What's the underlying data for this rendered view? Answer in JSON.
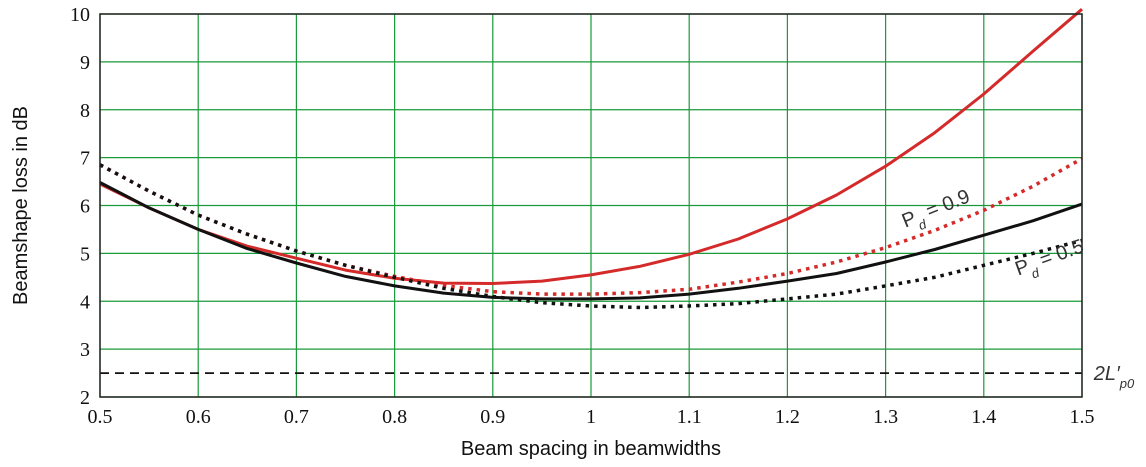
{
  "chart_data": {
    "type": "line",
    "xlabel": "Beam spacing in beamwidths",
    "ylabel": "Beamshape loss in dB",
    "xlim": [
      0.5,
      1.5
    ],
    "ylim": [
      2,
      10
    ],
    "x_ticks": [
      "0.5",
      "0.6",
      "0.7",
      "0.8",
      "0.9",
      "1",
      "1.1",
      "1.2",
      "1.3",
      "1.4",
      "1.5"
    ],
    "y_ticks": [
      "2",
      "3",
      "4",
      "5",
      "6",
      "7",
      "8",
      "9",
      "10"
    ],
    "grid": true,
    "grid_color": "#1a9a3a",
    "x": [
      0.5,
      0.55,
      0.6,
      0.65,
      0.7,
      0.75,
      0.8,
      0.85,
      0.9,
      0.95,
      1.0,
      1.05,
      1.1,
      1.15,
      1.2,
      1.25,
      1.3,
      1.35,
      1.4,
      1.45,
      1.5
    ],
    "series": [
      {
        "style": "solid",
        "color": "#d42a2a",
        "values": [
          6.45,
          5.95,
          5.5,
          5.15,
          4.9,
          4.65,
          4.48,
          4.38,
          4.37,
          4.42,
          4.55,
          4.73,
          4.98,
          5.3,
          5.72,
          6.22,
          6.82,
          7.52,
          8.33,
          9.22,
          10.1
        ]
      },
      {
        "style": "dotted",
        "color": "#d42a2a",
        "values": [
          6.85,
          6.3,
          5.8,
          5.4,
          5.05,
          4.75,
          4.52,
          4.33,
          4.2,
          4.15,
          4.15,
          4.18,
          4.25,
          4.4,
          4.58,
          4.82,
          5.12,
          5.48,
          5.9,
          6.4,
          6.98
        ]
      },
      {
        "style": "solid",
        "color": "#111111",
        "values": [
          6.48,
          5.95,
          5.5,
          5.1,
          4.8,
          4.52,
          4.32,
          4.17,
          4.08,
          4.05,
          4.05,
          4.07,
          4.15,
          4.27,
          4.42,
          4.58,
          4.82,
          5.08,
          5.38,
          5.68,
          6.03
        ]
      },
      {
        "style": "dotted",
        "color": "#111111",
        "values": [
          6.85,
          6.3,
          5.8,
          5.4,
          5.05,
          4.75,
          4.5,
          4.27,
          4.1,
          3.97,
          3.9,
          3.87,
          3.9,
          3.95,
          4.05,
          4.15,
          4.32,
          4.5,
          4.75,
          5.0,
          5.27
        ]
      },
      {
        "style": "dashed",
        "color": "#111111",
        "values": [
          2.5,
          2.5,
          2.5,
          2.5,
          2.5,
          2.5,
          2.5,
          2.5,
          2.5,
          2.5,
          2.5,
          2.5,
          2.5,
          2.5,
          2.5,
          2.5,
          2.5,
          2.5,
          2.5,
          2.5,
          2.5
        ]
      }
    ],
    "annotations": [
      {
        "text": "P",
        "sub": "d",
        "rest": " = 0.9",
        "x": 1.32,
        "y": 5.68,
        "angle": -22
      },
      {
        "text": "P",
        "sub": "d",
        "rest": " = 0.5",
        "x": 1.435,
        "y": 4.68,
        "angle": -20
      },
      {
        "text": "2L′",
        "sub": "p0",
        "rest": "",
        "x": 1.512,
        "y": 2.5,
        "angle": 0
      }
    ]
  }
}
